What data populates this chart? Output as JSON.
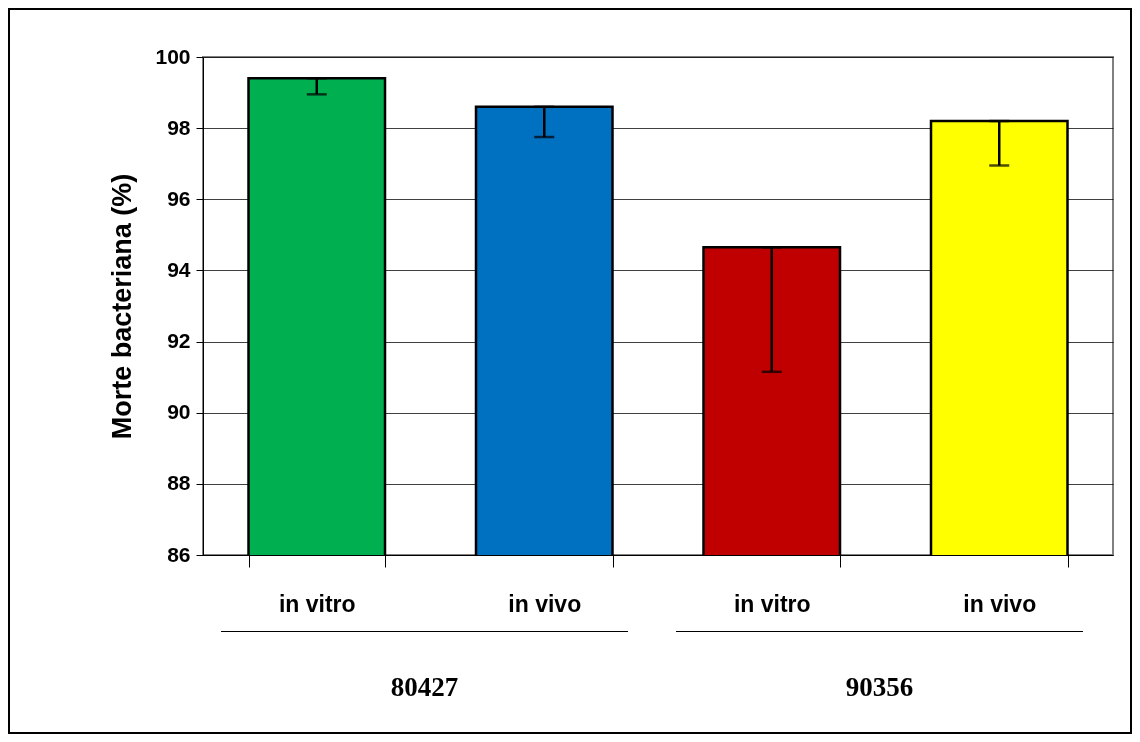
{
  "chart_data": {
    "type": "bar",
    "ylabel": "Morte bacteriana (%)",
    "categories": [
      "in vitro",
      "in vivo",
      "in vitro",
      "in vivo"
    ],
    "values": [
      99.4,
      98.6,
      94.65,
      98.2
    ],
    "colors": [
      "#00b050",
      "#0070c0",
      "#c00000",
      "#ffff00"
    ],
    "errors": [
      [
        98.95,
        99.4
      ],
      [
        97.75,
        98.6
      ],
      [
        91.15,
        94.65
      ],
      [
        96.95,
        98.2
      ]
    ],
    "ylim": [
      86,
      100
    ],
    "yticks": [
      86,
      88,
      90,
      92,
      94,
      96,
      98,
      100
    ],
    "grid": "y",
    "annotations": [
      "80427",
      "90356"
    ]
  }
}
